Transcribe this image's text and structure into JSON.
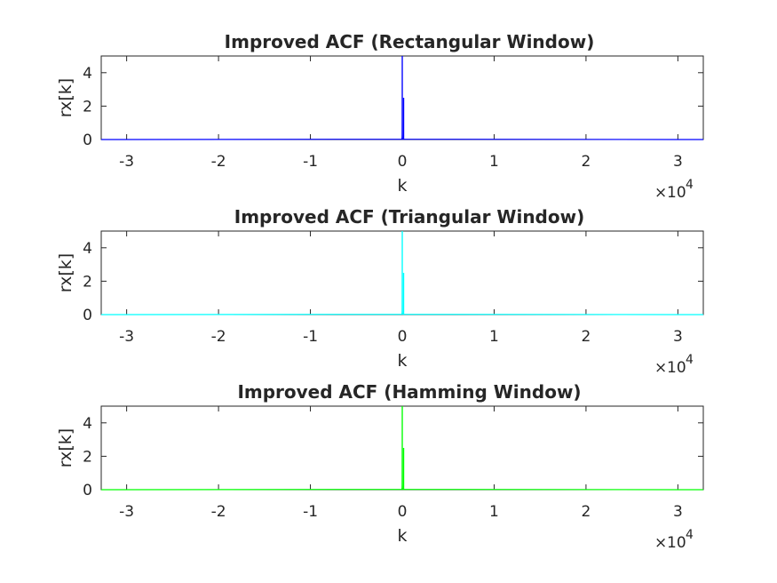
{
  "figure": {
    "background": "#ffffff"
  },
  "chart_data": [
    {
      "type": "line",
      "title": "Improved ACF (Rectangular Window)",
      "xlabel": "k",
      "ylabel": "rx[k]",
      "x_multiplier": "10",
      "x_multiplier_exp": "4",
      "xlim": [
        -32767,
        32767
      ],
      "ylim": [
        0,
        5
      ],
      "xticks": [
        -30000,
        -20000,
        -10000,
        0,
        10000,
        20000,
        30000
      ],
      "xtick_labels": [
        "-3",
        "-2",
        "-1",
        "0",
        "1",
        "2",
        "3"
      ],
      "yticks": [
        0,
        2,
        4
      ],
      "ytick_labels": [
        "0",
        "2",
        "4"
      ],
      "color": "#0000ff",
      "series": [
        {
          "x": [
            -32767,
            -60,
            -20,
            -8,
            -3,
            -1,
            0,
            1,
            3,
            8,
            20,
            60,
            32767
          ],
          "y": [
            0,
            0.02,
            0.08,
            0.3,
            1.2,
            2.5,
            5.0,
            2.5,
            1.2,
            0.3,
            0.08,
            0.02,
            0
          ]
        }
      ],
      "grid": false
    },
    {
      "type": "line",
      "title": "Improved ACF (Triangular Window)",
      "xlabel": "k",
      "ylabel": "rx[k]",
      "x_multiplier": "10",
      "x_multiplier_exp": "4",
      "xlim": [
        -32767,
        32767
      ],
      "ylim": [
        0,
        5
      ],
      "xticks": [
        -30000,
        -20000,
        -10000,
        0,
        10000,
        20000,
        30000
      ],
      "xtick_labels": [
        "-3",
        "-2",
        "-1",
        "0",
        "1",
        "2",
        "3"
      ],
      "yticks": [
        0,
        2,
        4
      ],
      "ytick_labels": [
        "0",
        "2",
        "4"
      ],
      "color": "#00ffff",
      "series": [
        {
          "x": [
            -32767,
            -60,
            -20,
            -8,
            -3,
            -1,
            0,
            1,
            3,
            8,
            20,
            60,
            32767
          ],
          "y": [
            0,
            0.02,
            0.08,
            0.3,
            1.2,
            2.5,
            5.0,
            2.5,
            1.2,
            0.3,
            0.08,
            0.02,
            0
          ]
        }
      ],
      "grid": false
    },
    {
      "type": "line",
      "title": "Improved ACF (Hamming Window)",
      "xlabel": "k",
      "ylabel": "rx[k]",
      "x_multiplier": "10",
      "x_multiplier_exp": "4",
      "xlim": [
        -32767,
        32767
      ],
      "ylim": [
        0,
        5
      ],
      "xticks": [
        -30000,
        -20000,
        -10000,
        0,
        10000,
        20000,
        30000
      ],
      "xtick_labels": [
        "-3",
        "-2",
        "-1",
        "0",
        "1",
        "2",
        "3"
      ],
      "yticks": [
        0,
        2,
        4
      ],
      "ytick_labels": [
        "0",
        "2",
        "4"
      ],
      "color": "#00ff00",
      "series": [
        {
          "x": [
            -32767,
            -60,
            -20,
            -8,
            -3,
            -1,
            0,
            1,
            3,
            8,
            20,
            60,
            32767
          ],
          "y": [
            0,
            0.02,
            0.08,
            0.3,
            1.2,
            2.5,
            5.0,
            2.5,
            1.2,
            0.3,
            0.08,
            0.02,
            0
          ]
        }
      ],
      "grid": false
    }
  ]
}
